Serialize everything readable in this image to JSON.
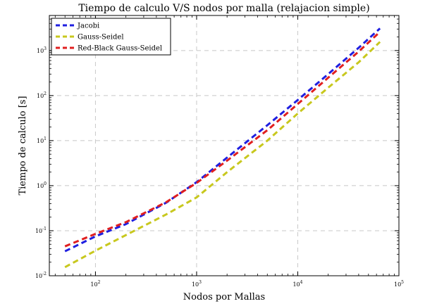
{
  "chart_data": {
    "type": "line",
    "title": "Tiempo de calculo V/S nodos por malla (relajacion simple)",
    "xlabel": "Nodos por Mallas",
    "ylabel": "Tiempo de calculo [s]",
    "xscale": "log",
    "yscale": "log",
    "xlim": [
      35,
      100000
    ],
    "ylim": [
      0.01,
      6000
    ],
    "grid": true,
    "legend_position": "top-left",
    "xticks": [
      {
        "value": 100,
        "base": "10",
        "exp": "2"
      },
      {
        "value": 1000,
        "base": "10",
        "exp": "3"
      },
      {
        "value": 10000,
        "base": "10",
        "exp": "4"
      },
      {
        "value": 100000,
        "base": "10",
        "exp": "5"
      }
    ],
    "yticks": [
      {
        "value": 0.01,
        "base": "10",
        "exp": "-2"
      },
      {
        "value": 0.1,
        "base": "10",
        "exp": "-1"
      },
      {
        "value": 1,
        "base": "10",
        "exp": "0"
      },
      {
        "value": 10,
        "base": "10",
        "exp": "1"
      },
      {
        "value": 100,
        "base": "10",
        "exp": "2"
      },
      {
        "value": 1000,
        "base": "10",
        "exp": "3"
      }
    ],
    "series": [
      {
        "name": "Jacobi",
        "color": "#1f1fe0",
        "points": [
          [
            50,
            0.035
          ],
          [
            100,
            0.075
          ],
          [
            200,
            0.14
          ],
          [
            500,
            0.42
          ],
          [
            1000,
            1.2
          ],
          [
            2000,
            4.2
          ],
          [
            5000,
            22
          ],
          [
            10000,
            80
          ],
          [
            20000,
            300
          ],
          [
            40000,
            1150
          ],
          [
            65000,
            3100
          ]
        ]
      },
      {
        "name": "Gauss-Seidel",
        "color": "#c8c81e",
        "points": [
          [
            50,
            0.0155
          ],
          [
            100,
            0.036
          ],
          [
            200,
            0.08
          ],
          [
            500,
            0.23
          ],
          [
            1000,
            0.55
          ],
          [
            2000,
            2.0
          ],
          [
            5000,
            10
          ],
          [
            10000,
            40
          ],
          [
            20000,
            150
          ],
          [
            40000,
            550
          ],
          [
            65000,
            1550
          ]
        ]
      },
      {
        "name": "Red-Black Gauss-Seidel",
        "color": "#e01f1f",
        "points": [
          [
            50,
            0.045
          ],
          [
            100,
            0.085
          ],
          [
            200,
            0.155
          ],
          [
            500,
            0.43
          ],
          [
            1000,
            1.15
          ],
          [
            2000,
            3.6
          ],
          [
            5000,
            17
          ],
          [
            10000,
            65
          ],
          [
            20000,
            250
          ],
          [
            40000,
            950
          ],
          [
            65000,
            2600
          ]
        ]
      }
    ]
  }
}
